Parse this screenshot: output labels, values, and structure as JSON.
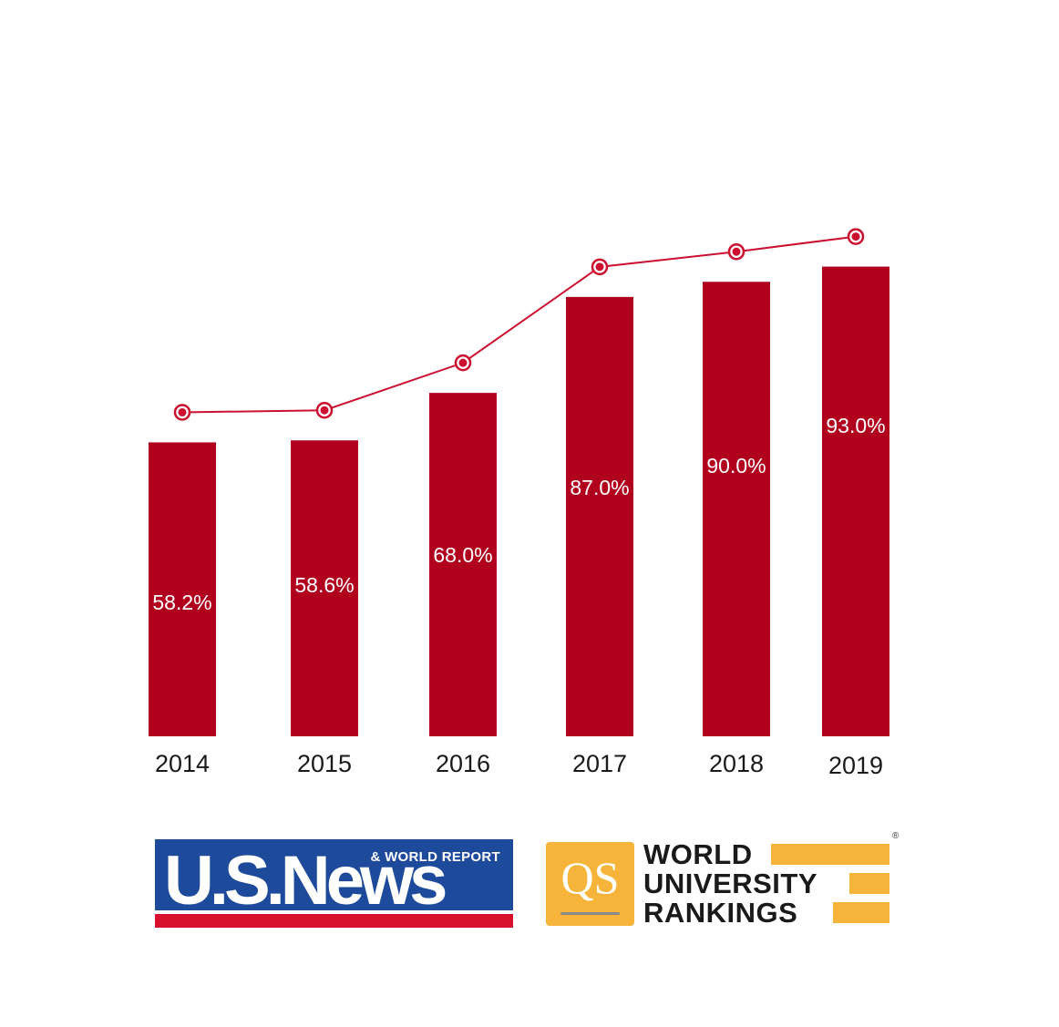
{
  "chart_data": {
    "type": "bar",
    "categories": [
      "2014",
      "2015",
      "2016",
      "2017",
      "2018",
      "2019"
    ],
    "series": [
      {
        "values": [
          58.2,
          58.6,
          68.0,
          87.0,
          90.0,
          93.0
        ]
      }
    ],
    "data_labels": [
      "58.2%",
      "58.6%",
      "68.0%",
      "87.0%",
      "90.0%",
      "93.0%"
    ],
    "overlay_line": "connects a marker above each bar",
    "title": "",
    "xlabel": "",
    "ylabel": "",
    "grid": false,
    "colors": {
      "bar": "#b0001e",
      "line": "#cc1030",
      "marker_fill": "#ffffff"
    }
  },
  "logos": {
    "usnews": {
      "main": "U.S.News",
      "sub": "& WORLD REPORT"
    },
    "qs": {
      "mark": "QS",
      "lines": [
        "WORLD",
        "UNIVERSITY",
        "RANKINGS"
      ],
      "registered": "®"
    }
  }
}
